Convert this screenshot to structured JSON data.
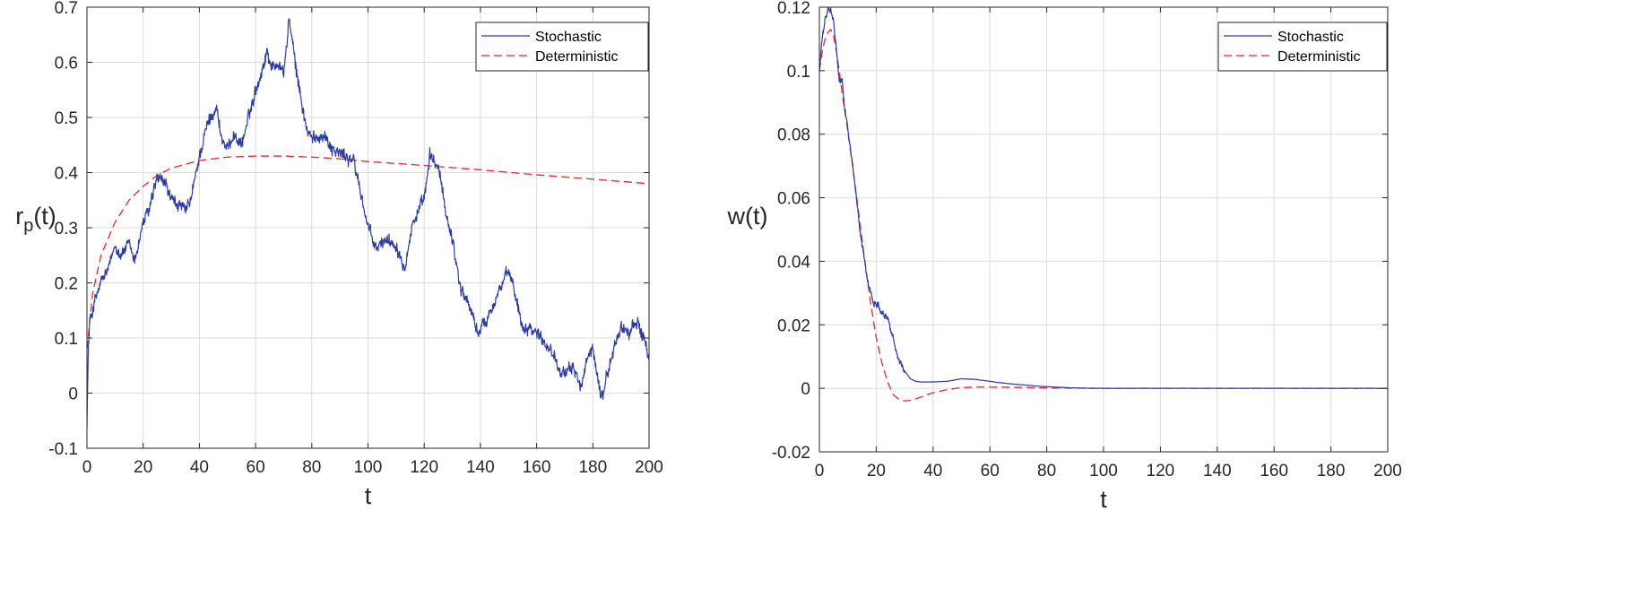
{
  "chart_data": [
    {
      "type": "line",
      "title": "",
      "xlabel": "t",
      "ylabel_main": "r",
      "ylabel_sub": "p",
      "ylabel_suffix": "(t)",
      "xlim": [
        0,
        200
      ],
      "ylim": [
        -0.1,
        0.7
      ],
      "grid": true,
      "legend_position": "top-right",
      "xticks": [
        0,
        20,
        40,
        60,
        80,
        100,
        120,
        140,
        160,
        180,
        200
      ],
      "xtick_labels": [
        "0",
        "20",
        "40",
        "60",
        "80",
        "100",
        "120",
        "140",
        "160",
        "180",
        "200"
      ],
      "yticks": [
        -0.1,
        0,
        0.1,
        0.2,
        0.3,
        0.4,
        0.5,
        0.6,
        0.7
      ],
      "ytick_labels": [
        "-0.1",
        "0",
        "0.1",
        "0.2",
        "0.3",
        "0.4",
        "0.5",
        "0.6",
        "0.7"
      ],
      "noise_amplitude": 0.013,
      "series": [
        {
          "name": "Stochastic",
          "color": "#2e3c9c",
          "style": "solid",
          "noisy": true,
          "x": [
            0,
            0.5,
            1,
            3,
            5,
            8,
            10,
            12,
            15,
            17,
            20,
            22,
            25,
            28,
            30,
            33,
            35,
            37,
            40,
            43,
            46,
            48,
            50,
            52,
            55,
            58,
            60,
            62,
            64,
            66,
            68,
            70,
            72,
            74,
            76,
            78,
            80,
            84,
            88,
            92,
            95,
            98,
            100,
            103,
            106,
            110,
            113,
            116,
            120,
            122,
            125,
            128,
            130,
            133,
            136,
            139,
            142,
            146,
            150,
            152,
            155,
            158,
            162,
            166,
            170,
            173,
            176,
            178,
            180,
            183,
            185,
            188,
            190,
            193,
            196,
            198,
            200
          ],
          "y": [
            -0.05,
            0.08,
            0.13,
            0.17,
            0.2,
            0.23,
            0.27,
            0.25,
            0.27,
            0.24,
            0.31,
            0.33,
            0.39,
            0.38,
            0.35,
            0.34,
            0.33,
            0.35,
            0.43,
            0.49,
            0.52,
            0.46,
            0.44,
            0.47,
            0.45,
            0.51,
            0.55,
            0.58,
            0.62,
            0.59,
            0.6,
            0.58,
            0.68,
            0.6,
            0.54,
            0.48,
            0.46,
            0.47,
            0.44,
            0.43,
            0.42,
            0.35,
            0.3,
            0.26,
            0.28,
            0.27,
            0.23,
            0.31,
            0.35,
            0.43,
            0.41,
            0.32,
            0.28,
            0.19,
            0.16,
            0.11,
            0.13,
            0.18,
            0.22,
            0.19,
            0.12,
            0.12,
            0.1,
            0.07,
            0.03,
            0.05,
            0.01,
            0.06,
            0.08,
            -0.01,
            0.03,
            0.09,
            0.12,
            0.11,
            0.13,
            0.1,
            0.06
          ]
        },
        {
          "name": "Deterministic",
          "color": "#e3262b",
          "style": "dashed",
          "noisy": false,
          "x": [
            0,
            2,
            5,
            10,
            15,
            20,
            25,
            30,
            40,
            50,
            60,
            70,
            80,
            90,
            100,
            120,
            140,
            160,
            180,
            200
          ],
          "y": [
            0.08,
            0.18,
            0.25,
            0.31,
            0.35,
            0.375,
            0.395,
            0.408,
            0.422,
            0.428,
            0.43,
            0.43,
            0.428,
            0.425,
            0.42,
            0.413,
            0.405,
            0.396,
            0.388,
            0.38
          ]
        }
      ]
    },
    {
      "type": "line",
      "title": "",
      "xlabel": "t",
      "ylabel_main": "w(t)",
      "ylabel_sub": "",
      "ylabel_suffix": "",
      "xlim": [
        0,
        200
      ],
      "ylim": [
        -0.02,
        0.12
      ],
      "grid": true,
      "legend_position": "top-right",
      "xticks": [
        0,
        20,
        40,
        60,
        80,
        100,
        120,
        140,
        160,
        180,
        200
      ],
      "xtick_labels": [
        "0",
        "20",
        "40",
        "60",
        "80",
        "100",
        "120",
        "140",
        "160",
        "180",
        "200"
      ],
      "yticks": [
        -0.02,
        0,
        0.02,
        0.04,
        0.06,
        0.08,
        0.1,
        0.12
      ],
      "ytick_labels": [
        "-0.02",
        "0",
        "0.02",
        "0.04",
        "0.06",
        "0.08",
        "0.1",
        "0.12"
      ],
      "noise_amplitude": 0.0012,
      "series": [
        {
          "name": "Stochastic",
          "color": "#2e3c9c",
          "style": "solid",
          "noisy": true,
          "x": [
            0,
            1,
            2,
            3,
            4,
            5,
            6,
            7,
            8,
            9,
            10,
            11,
            12,
            13,
            14,
            15,
            16,
            17,
            18,
            19,
            20,
            21,
            22,
            23,
            24,
            25,
            26,
            27,
            28,
            30,
            32,
            34,
            36,
            38,
            40,
            45,
            50,
            55,
            60,
            65,
            70,
            75,
            80,
            85,
            90,
            100,
            120,
            140,
            160,
            180,
            200
          ],
          "y": [
            0.1,
            0.11,
            0.116,
            0.119,
            0.119,
            0.115,
            0.107,
            0.096,
            0.097,
            0.088,
            0.082,
            0.075,
            0.068,
            0.06,
            0.052,
            0.045,
            0.04,
            0.034,
            0.03,
            0.027,
            0.027,
            0.026,
            0.024,
            0.023,
            0.022,
            0.019,
            0.016,
            0.012,
            0.009,
            0.0055,
            0.003,
            0.0022,
            0.002,
            0.002,
            0.002,
            0.0022,
            0.003,
            0.0028,
            0.0022,
            0.0016,
            0.0012,
            0.0008,
            0.0005,
            0.0003,
            0.0001,
            0,
            0,
            0,
            0,
            0,
            0
          ]
        },
        {
          "name": "Deterministic",
          "color": "#e3262b",
          "style": "dashed",
          "noisy": false,
          "x": [
            0,
            1,
            2,
            3,
            4,
            5,
            6,
            7,
            8,
            10,
            12,
            14,
            16,
            18,
            20,
            22,
            24,
            26,
            28,
            30,
            32,
            34,
            36,
            38,
            40,
            45,
            50,
            55,
            60,
            70,
            80,
            90,
            100,
            120,
            140,
            160,
            180,
            200
          ],
          "y": [
            0.1,
            0.106,
            0.11,
            0.112,
            0.113,
            0.111,
            0.106,
            0.1,
            0.093,
            0.081,
            0.068,
            0.054,
            0.04,
            0.027,
            0.016,
            0.008,
            0.002,
            -0.002,
            -0.0035,
            -0.004,
            -0.0038,
            -0.0033,
            -0.0027,
            -0.002,
            -0.0014,
            -0.0004,
            0.0002,
            0.0004,
            0.0004,
            0.0003,
            0.0001,
            5e-05,
            0,
            0,
            0,
            0,
            0,
            0
          ]
        }
      ]
    }
  ]
}
